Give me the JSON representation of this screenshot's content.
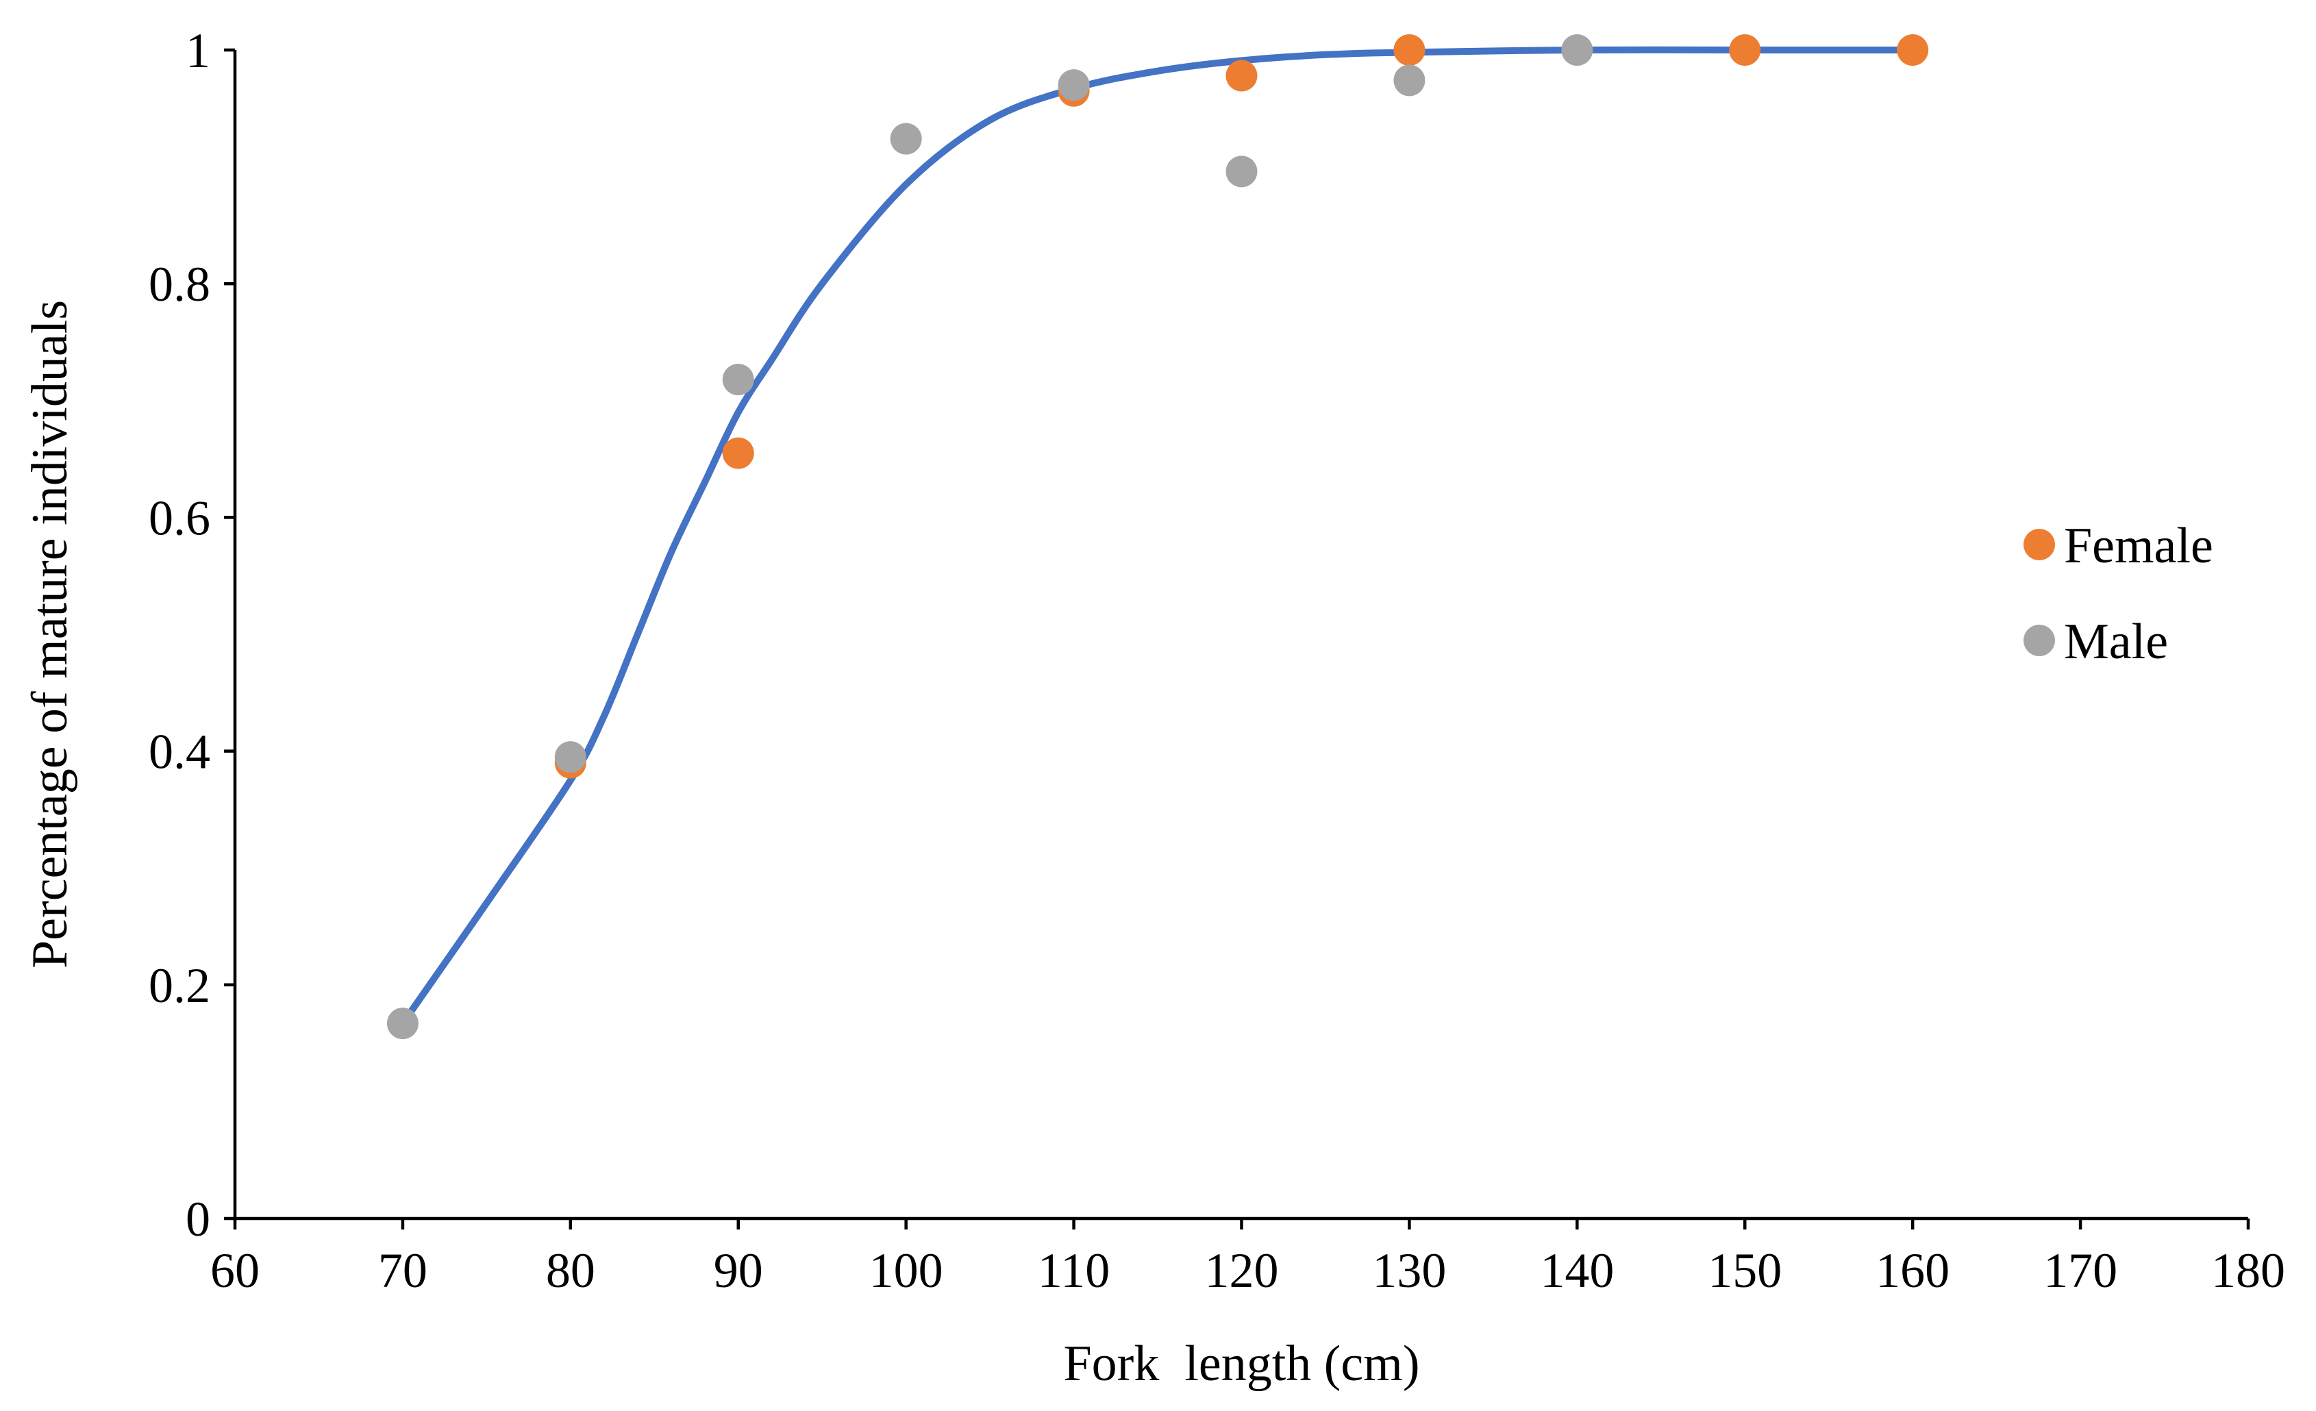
{
  "chart_data": {
    "type": "scatter",
    "title": "",
    "xlabel": "Fork  length (cm)",
    "ylabel": "Percentage of mature individuals",
    "xlim": [
      60,
      180
    ],
    "ylim": [
      0,
      1
    ],
    "x_ticks": [
      60,
      70,
      80,
      90,
      100,
      110,
      120,
      130,
      140,
      150,
      160,
      170,
      180
    ],
    "y_ticks": [
      0,
      0.2,
      0.4,
      0.6,
      0.8,
      1
    ],
    "x_tick_labels": [
      "60",
      "70",
      "80",
      "90",
      "100",
      "110",
      "120",
      "130",
      "140",
      "150",
      "160",
      "170",
      "180"
    ],
    "y_tick_labels": [
      "0",
      "0.2",
      "0.4",
      "0.6",
      "0.8",
      "1"
    ],
    "grid": false,
    "legend_position": "right",
    "series": [
      {
        "name": "Female",
        "color": "#ED7D31",
        "x": [
          80,
          90,
          110,
          120,
          130,
          150,
          160
        ],
        "y": [
          0.39,
          0.655,
          0.965,
          0.978,
          1.0,
          1.0,
          1.0
        ]
      },
      {
        "name": "Male",
        "color": "#A5A5A5",
        "x": [
          70,
          80,
          90,
          100,
          110,
          120,
          130,
          140
        ],
        "y": [
          0.167,
          0.395,
          0.718,
          0.924,
          0.97,
          0.896,
          0.974,
          1.0
        ]
      }
    ],
    "fit_curve": {
      "color": "#4472C4",
      "x": [
        70,
        75,
        80,
        82,
        84,
        86,
        88,
        90,
        92,
        95,
        100,
        105,
        110,
        115,
        120,
        125,
        130,
        140,
        150,
        160
      ],
      "y": [
        0.167,
        0.27,
        0.375,
        0.43,
        0.5,
        0.57,
        0.63,
        0.69,
        0.735,
        0.8,
        0.885,
        0.94,
        0.967,
        0.982,
        0.991,
        0.996,
        0.998,
        1.0,
        1.0,
        1.0
      ]
    }
  }
}
